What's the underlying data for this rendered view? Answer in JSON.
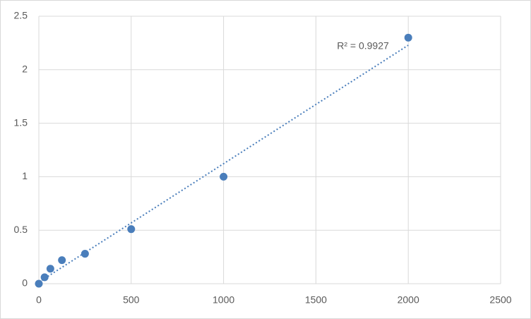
{
  "chart_data": {
    "type": "scatter",
    "x": [
      0,
      31.25,
      62.5,
      125,
      250,
      500,
      1000,
      2000
    ],
    "values": [
      0,
      0.06,
      0.14,
      0.22,
      0.28,
      0.51,
      1.0,
      2.3
    ],
    "color": "#4a7ebb",
    "xlim": [
      0,
      2500
    ],
    "xticks": [
      0,
      500,
      1000,
      1500,
      2000,
      2500
    ],
    "ylim": [
      0,
      2.5
    ],
    "yticks": [
      0,
      0.5,
      1,
      1.5,
      2,
      2.5
    ],
    "grid": true,
    "trendline": "linear",
    "annotation": "R² = 0.9927"
  }
}
